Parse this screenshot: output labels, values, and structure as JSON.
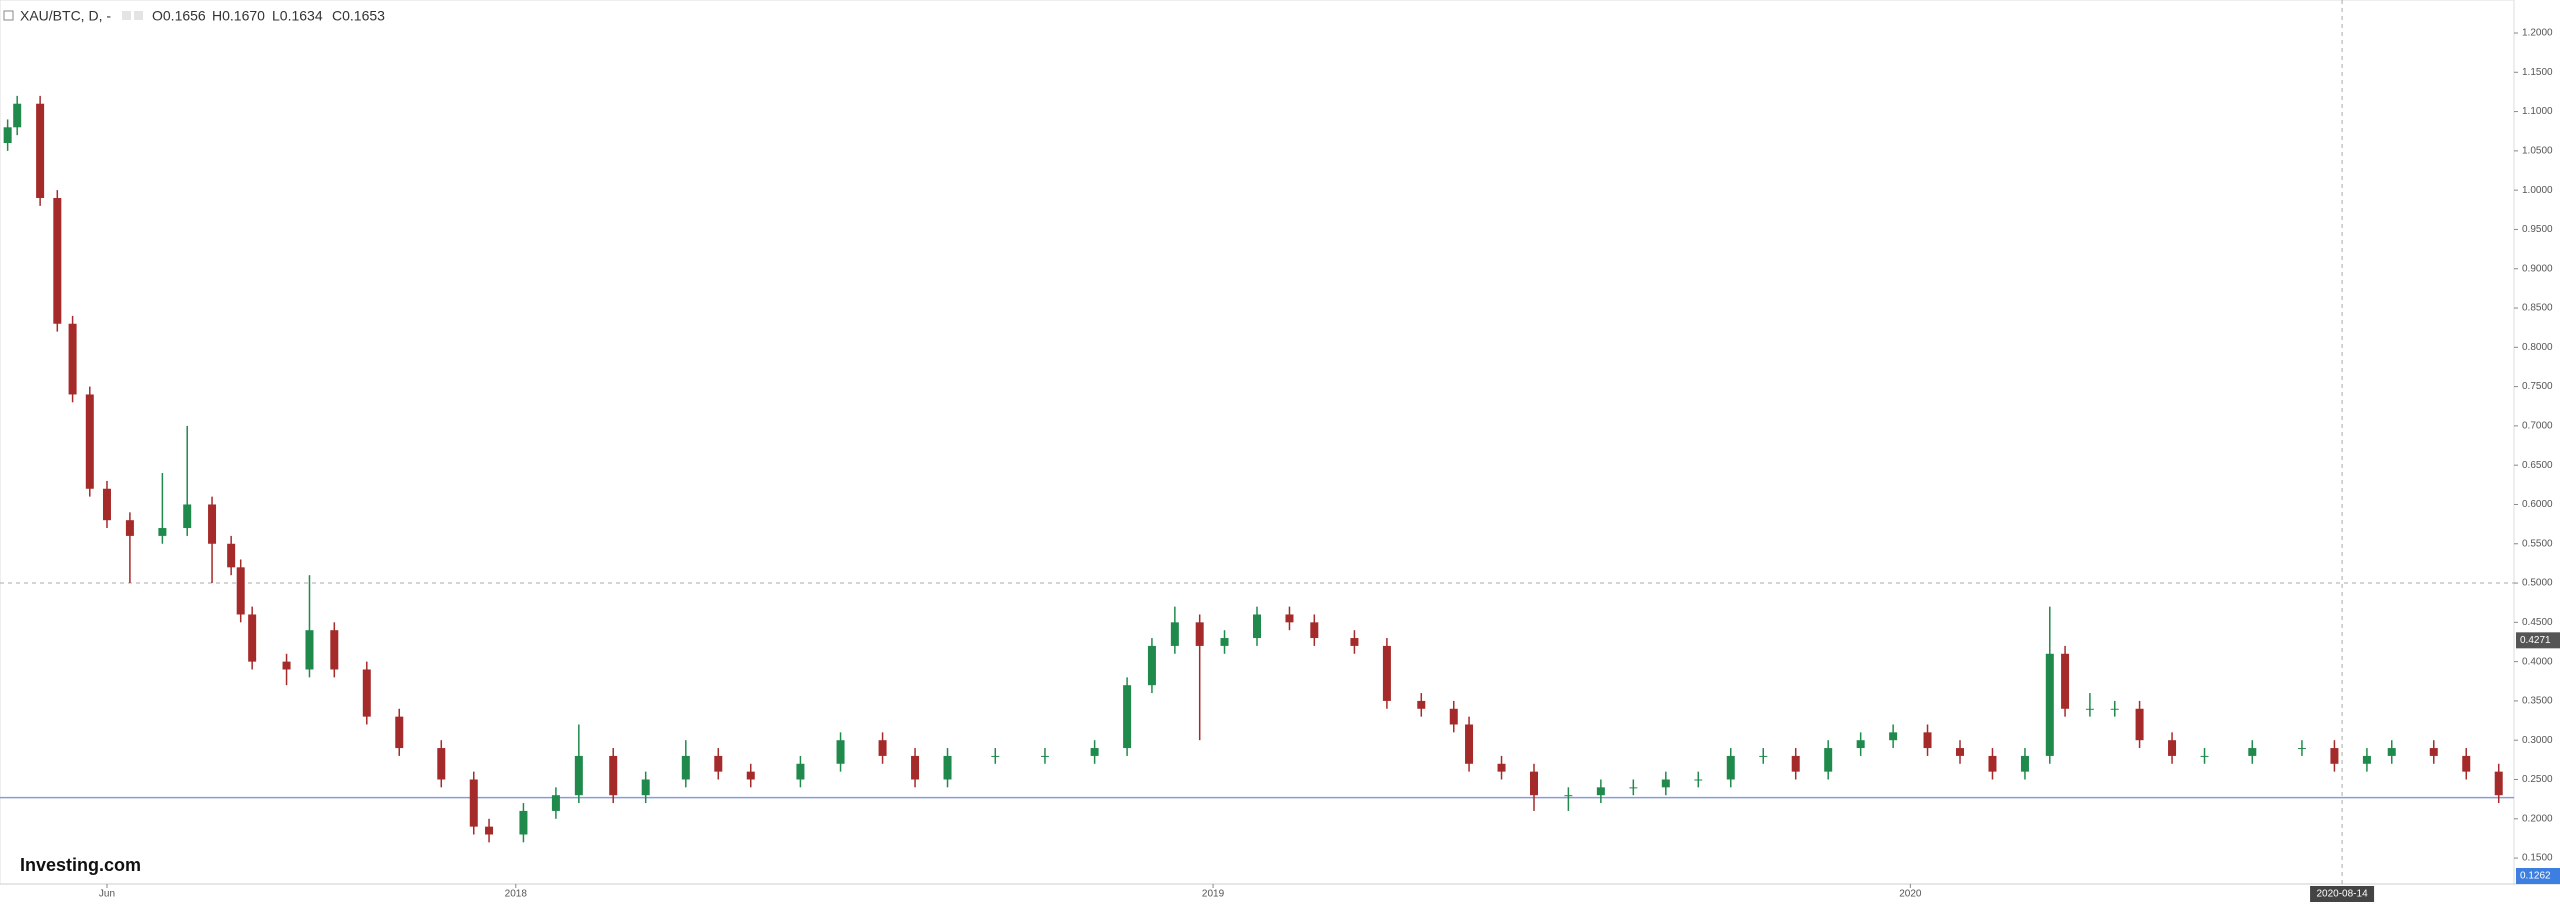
{
  "chart_data": {
    "type": "candlestick",
    "title": "XAU/BTC, D, -",
    "ohlc_legend": [
      "O0.1656",
      "H0.1670",
      "L0.1634",
      "C0.1653"
    ],
    "watermark": "Investing.com",
    "up_color": "#1f8a4c",
    "down_color": "#a52a2a",
    "xlim": [
      0,
      1316
    ],
    "xticks": [
      {
        "value": 56,
        "label": "Jun"
      },
      {
        "value": 270,
        "label": "2018"
      },
      {
        "value": 635,
        "label": "2019"
      },
      {
        "value": 1000,
        "label": "2020"
      }
    ],
    "ylim": [
      0.117,
      1.242
    ],
    "yticks": [
      {
        "value": 0.15,
        "label": "0.1500"
      },
      {
        "value": 0.2,
        "label": "0.2000"
      },
      {
        "value": 0.25,
        "label": "0.2500"
      },
      {
        "value": 0.3,
        "label": "0.3000"
      },
      {
        "value": 0.35,
        "label": "0.3500"
      },
      {
        "value": 0.4,
        "label": "0.4000"
      },
      {
        "value": 0.45,
        "label": "0.4500"
      },
      {
        "value": 0.5,
        "label": "0.5000"
      },
      {
        "value": 0.55,
        "label": "0.5500"
      },
      {
        "value": 0.6,
        "label": "0.6000"
      },
      {
        "value": 0.65,
        "label": "0.6500"
      },
      {
        "value": 0.7,
        "label": "0.7000"
      },
      {
        "value": 0.75,
        "label": "0.7500"
      },
      {
        "value": 0.8,
        "label": "0.8000"
      },
      {
        "value": 0.85,
        "label": "0.8500"
      },
      {
        "value": 0.9,
        "label": "0.9000"
      },
      {
        "value": 0.95,
        "label": "0.9500"
      },
      {
        "value": 1.0,
        "label": "1.0000"
      },
      {
        "value": 1.05,
        "label": "1.0500"
      },
      {
        "value": 1.1,
        "label": "1.1000"
      },
      {
        "value": 1.15,
        "label": "1.1500"
      },
      {
        "value": 1.2,
        "label": "1.2000"
      }
    ],
    "x": [
      4,
      9,
      21,
      30,
      38,
      47,
      56,
      68,
      85,
      98,
      111,
      121,
      126,
      132,
      150,
      162,
      175,
      192,
      209,
      231,
      248,
      256,
      274,
      291,
      303,
      321,
      338,
      359,
      376,
      393,
      419,
      440,
      462,
      479,
      496,
      521,
      547,
      573,
      590,
      603,
      615,
      628,
      641,
      658,
      675,
      688,
      709,
      726,
      744,
      761,
      769,
      786,
      803,
      821,
      838,
      855,
      872,
      889,
      906,
      923,
      940,
      957,
      974,
      991,
      1009,
      1026,
      1043,
      1060,
      1073,
      1081,
      1094,
      1107,
      1120,
      1137,
      1154,
      1179,
      1205,
      1222,
      1239,
      1252,
      1274,
      1291,
      1308
    ],
    "open": [
      1.06,
      1.08,
      1.11,
      0.99,
      0.83,
      0.74,
      0.62,
      0.58,
      0.56,
      0.57,
      0.6,
      0.55,
      0.52,
      0.46,
      0.4,
      0.39,
      0.44,
      0.39,
      0.33,
      0.29,
      0.25,
      0.19,
      0.18,
      0.21,
      0.23,
      0.28,
      0.23,
      0.25,
      0.28,
      0.26,
      0.25,
      0.27,
      0.3,
      0.28,
      0.25,
      0.28,
      0.28,
      0.28,
      0.29,
      0.37,
      0.42,
      0.45,
      0.42,
      0.43,
      0.46,
      0.45,
      0.43,
      0.42,
      0.35,
      0.34,
      0.32,
      0.27,
      0.26,
      0.23,
      0.23,
      0.24,
      0.24,
      0.25,
      0.25,
      0.28,
      0.28,
      0.26,
      0.29,
      0.3,
      0.31,
      0.29,
      0.28,
      0.26,
      0.28,
      0.41,
      0.34,
      0.34,
      0.34,
      0.3,
      0.28,
      0.28,
      0.29,
      0.29,
      0.27,
      0.28,
      0.29,
      0.28,
      0.26
    ],
    "high": [
      1.09,
      1.12,
      1.12,
      1.0,
      0.84,
      0.75,
      0.63,
      0.59,
      0.64,
      0.7,
      0.61,
      0.56,
      0.53,
      0.47,
      0.41,
      0.51,
      0.45,
      0.4,
      0.34,
      0.3,
      0.26,
      0.2,
      0.22,
      0.24,
      0.32,
      0.29,
      0.26,
      0.3,
      0.29,
      0.27,
      0.28,
      0.31,
      0.31,
      0.29,
      0.29,
      0.29,
      0.29,
      0.3,
      0.38,
      0.43,
      0.47,
      0.46,
      0.44,
      0.47,
      0.47,
      0.46,
      0.44,
      0.43,
      0.36,
      0.35,
      0.33,
      0.28,
      0.27,
      0.24,
      0.25,
      0.25,
      0.26,
      0.26,
      0.29,
      0.29,
      0.29,
      0.3,
      0.31,
      0.32,
      0.32,
      0.3,
      0.29,
      0.29,
      0.47,
      0.42,
      0.36,
      0.35,
      0.35,
      0.31,
      0.29,
      0.3,
      0.3,
      0.3,
      0.29,
      0.3,
      0.3,
      0.29,
      0.27
    ],
    "low": [
      1.05,
      1.07,
      0.98,
      0.82,
      0.73,
      0.61,
      0.57,
      0.5,
      0.55,
      0.56,
      0.5,
      0.51,
      0.45,
      0.39,
      0.37,
      0.38,
      0.38,
      0.32,
      0.28,
      0.24,
      0.18,
      0.17,
      0.17,
      0.2,
      0.22,
      0.22,
      0.22,
      0.24,
      0.25,
      0.24,
      0.24,
      0.26,
      0.27,
      0.24,
      0.24,
      0.27,
      0.27,
      0.27,
      0.28,
      0.36,
      0.41,
      0.3,
      0.41,
      0.42,
      0.44,
      0.42,
      0.41,
      0.34,
      0.33,
      0.31,
      0.26,
      0.25,
      0.21,
      0.21,
      0.22,
      0.23,
      0.23,
      0.24,
      0.24,
      0.27,
      0.25,
      0.25,
      0.28,
      0.29,
      0.28,
      0.27,
      0.25,
      0.25,
      0.27,
      0.33,
      0.33,
      0.33,
      0.29,
      0.27,
      0.27,
      0.27,
      0.28,
      0.26,
      0.26,
      0.27,
      0.27,
      0.25,
      0.22
    ],
    "close": [
      1.08,
      1.11,
      0.99,
      0.83,
      0.74,
      0.62,
      0.58,
      0.56,
      0.57,
      0.6,
      0.55,
      0.52,
      0.46,
      0.4,
      0.39,
      0.44,
      0.39,
      0.33,
      0.29,
      0.25,
      0.19,
      0.18,
      0.21,
      0.23,
      0.28,
      0.23,
      0.25,
      0.28,
      0.26,
      0.25,
      0.27,
      0.3,
      0.28,
      0.25,
      0.28,
      0.28,
      0.28,
      0.29,
      0.37,
      0.42,
      0.45,
      0.42,
      0.43,
      0.46,
      0.45,
      0.43,
      0.42,
      0.35,
      0.34,
      0.32,
      0.27,
      0.26,
      0.23,
      0.23,
      0.24,
      0.24,
      0.25,
      0.25,
      0.28,
      0.28,
      0.26,
      0.29,
      0.3,
      0.31,
      0.29,
      0.28,
      0.26,
      0.28,
      0.41,
      0.34,
      0.34,
      0.34,
      0.3,
      0.28,
      0.28,
      0.29,
      0.29,
      0.27,
      0.28,
      0.29,
      0.28,
      0.26,
      0.23
    ],
    "crosshair": {
      "x": 1226,
      "x_label": "2020-08-14",
      "y": 0.5
    },
    "price_line": {
      "value": 0.227,
      "color": "#8c9bd6"
    },
    "price_tags": [
      {
        "value": 0.4271,
        "color": "#555555"
      },
      {
        "value": 0.1262,
        "color": "#3d7fe0"
      }
    ]
  }
}
